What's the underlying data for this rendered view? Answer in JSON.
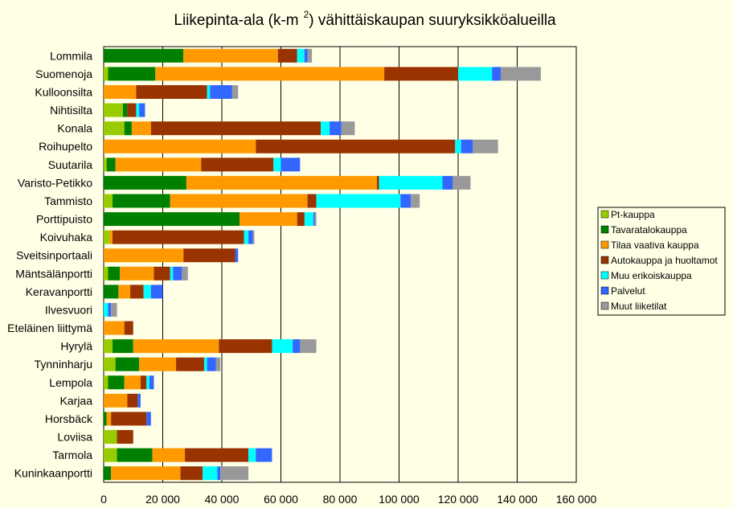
{
  "chart_data": {
    "type": "bar",
    "orientation": "horizontal",
    "stacked": true,
    "title": "Liikepinta-ala (k-m",
    "title_superscript": "2",
    "title_suffix": ") vähittäiskaupan suuryksikköalueilla",
    "xlim": [
      0,
      160000
    ],
    "xticks": [
      0,
      20000,
      40000,
      60000,
      80000,
      100000,
      120000,
      140000,
      160000
    ],
    "xtick_labels": [
      "0",
      "20 000",
      "40 000",
      "60 000",
      "80 000",
      "100 000",
      "120 000",
      "140 000",
      "160 000"
    ],
    "grid": "vertical",
    "legend_position": "right",
    "categories": [
      "Lommila",
      "Suomenoja",
      "Kulloonsilta",
      "Nihtisilta",
      "Konala",
      "Roihupelto",
      "Suutarila",
      "Varisto-Petikko",
      "Tammisto",
      "Porttipuisto",
      "Koivuhaka",
      "Sveitsinportaali",
      "Mäntsälänportti",
      "Keravanportti",
      "Ilvesvuori",
      "Eteläinen liittymä",
      "Hyrylä",
      "Tynninharju",
      "Lempola",
      "Karjaa",
      "Horsbäck",
      "Loviisa",
      "Tarmola",
      "Kuninkaanportti"
    ],
    "series": [
      {
        "name": "Pt-kauppa",
        "color": "#99cc00",
        "values": [
          0,
          1500,
          0,
          6500,
          7000,
          0,
          1000,
          0,
          3000,
          0,
          2000,
          0,
          1500,
          0,
          0,
          0,
          3000,
          4000,
          1500,
          0,
          0,
          4500,
          4500,
          0
        ]
      },
      {
        "name": "Tavaratalokauppa",
        "color": "#008000",
        "values": [
          27000,
          16000,
          0,
          1500,
          2500,
          0,
          3000,
          28000,
          19500,
          46000,
          0,
          0,
          4000,
          5000,
          0,
          0,
          7000,
          8000,
          5500,
          0,
          1000,
          0,
          12000,
          2500
        ]
      },
      {
        "name": "Tilaa vaativa kauppa",
        "color": "#ff9900",
        "values": [
          32000,
          77500,
          11000,
          0,
          6500,
          51500,
          29000,
          64500,
          46500,
          19500,
          1000,
          27000,
          11500,
          4000,
          0,
          7000,
          29000,
          12500,
          5500,
          8000,
          1500,
          0,
          11000,
          23500
        ]
      },
      {
        "name": "Autokauppa ja huoltamot",
        "color": "#993300",
        "values": [
          6500,
          25000,
          24000,
          3000,
          57500,
          67500,
          24500,
          700,
          3000,
          2500,
          44500,
          17500,
          5500,
          4500,
          0,
          3000,
          18000,
          9500,
          2000,
          3500,
          12000,
          5500,
          21500,
          7500
        ]
      },
      {
        "name": "Muu erikoiskauppa",
        "color": "#00ffff",
        "values": [
          2500,
          11500,
          1000,
          1000,
          3000,
          2000,
          2500,
          21500,
          28500,
          3000,
          1500,
          0,
          1000,
          2500,
          1500,
          0,
          7000,
          1000,
          1000,
          0,
          0,
          0,
          2500,
          5000
        ]
      },
      {
        "name": "Palvelut",
        "color": "#3366ff",
        "values": [
          1000,
          3000,
          7500,
          2000,
          4000,
          4000,
          6500,
          3500,
          3500,
          500,
          1500,
          1000,
          3000,
          4000,
          1000,
          0,
          2500,
          3000,
          1500,
          1000,
          1500,
          0,
          5500,
          1000
        ]
      },
      {
        "name": "Muut liiketilat",
        "color": "#999999",
        "values": [
          1500,
          13500,
          2000,
          0,
          4500,
          8500,
          0,
          6000,
          3000,
          500,
          500,
          0,
          2000,
          0,
          2000,
          0,
          5500,
          1500,
          0,
          0,
          0,
          0,
          0,
          9500
        ]
      }
    ]
  }
}
